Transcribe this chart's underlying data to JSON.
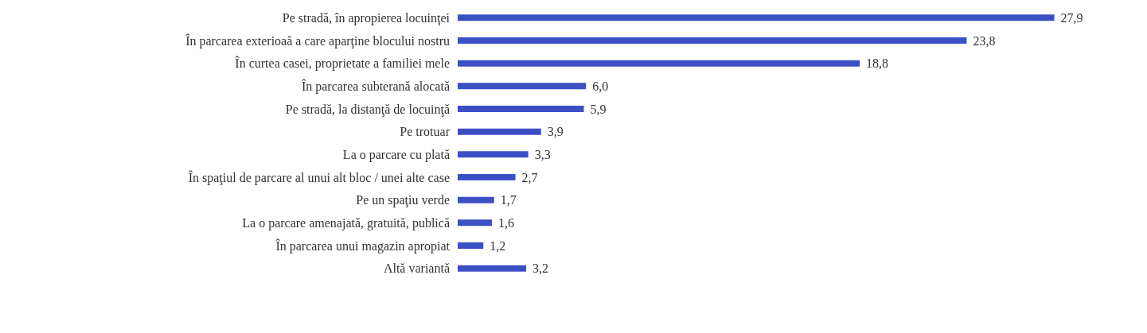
{
  "chart_data": {
    "type": "bar",
    "orientation": "horizontal",
    "categories": [
      "Pe stradă, în apropierea locuinţei",
      "În parcarea exterioaă a care aparţine blocului nostru",
      "În curtea casei, proprietate a familiei mele",
      "În parcarea subterană alocată",
      "Pe stradă, la distanţă de locuinţă",
      "Pe trotuar",
      "La o parcare cu plată",
      "În spaţiul de parcare al unui alt bloc / unei alte case",
      "Pe un spaţiu verde",
      "La o parcare amenajată, gratuită, publică",
      "În parcarea unui magazin apropiat",
      "Altă variantă"
    ],
    "series": [
      {
        "color": "#3b4fc4",
        "values": [
          27.9,
          23.8,
          18.8,
          6.0,
          5.9,
          3.9,
          3.3,
          2.7,
          1.7,
          1.6,
          1.2,
          3.2
        ],
        "value_labels": [
          "27,9",
          "23,8",
          "18,8",
          "6,0",
          "5,9",
          "3,9",
          "3,3",
          "2,7",
          "1,7",
          "1,6",
          "1,2",
          "3,2"
        ]
      }
    ]
  }
}
